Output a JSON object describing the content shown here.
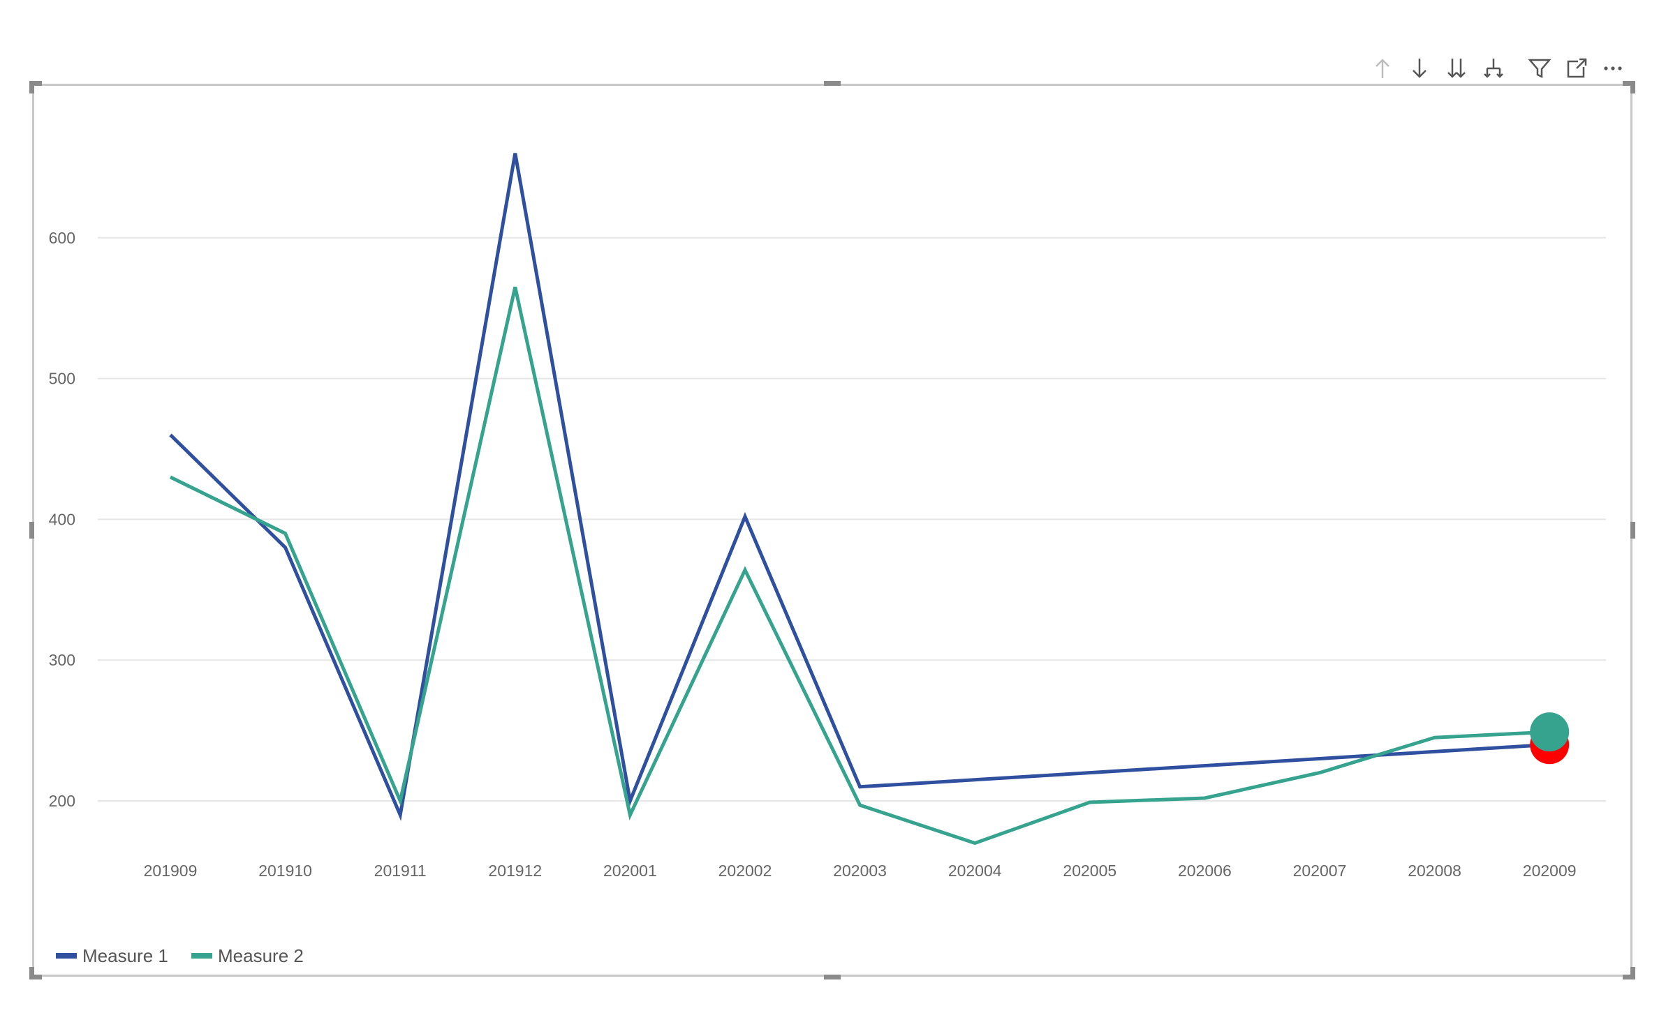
{
  "toolbar": {
    "icons": [
      "drill-up-icon",
      "drill-down-icon",
      "expand-next-level-icon",
      "expand-hierarchy-icon",
      "filter-icon",
      "focus-mode-icon",
      "more-options-icon"
    ]
  },
  "colors": {
    "measure1": "#2f4f9f",
    "measure2": "#36a38f",
    "marker_red": "#ff0000",
    "gridline": "#e6e6e6",
    "frame": "#c8c8c8"
  },
  "chart_data": {
    "type": "line",
    "categories": [
      "201909",
      "201910",
      "201911",
      "201912",
      "202001",
      "202002",
      "202003",
      "202004",
      "202005",
      "202006",
      "202007",
      "202008",
      "202009"
    ],
    "series": [
      {
        "name": "Measure 1",
        "values": [
          460,
          380,
          190,
          660,
          200,
          402,
          210,
          null,
          null,
          null,
          null,
          null,
          240
        ]
      },
      {
        "name": "Measure 2",
        "values": [
          430,
          390,
          200,
          565,
          190,
          364,
          197,
          170,
          199,
          202,
          220,
          245,
          249
        ]
      }
    ],
    "markers": [
      {
        "series": "Measure 1",
        "category": "202009",
        "value": 240,
        "color": "#ff0000"
      },
      {
        "series": "Measure 2",
        "category": "202009",
        "value": 249,
        "color": "#36a38f"
      }
    ],
    "yticks": [
      "200",
      "300",
      "400",
      "500",
      "600"
    ],
    "ylim": [
      150,
      680
    ],
    "grid": true,
    "legend_position": "bottom-left"
  }
}
